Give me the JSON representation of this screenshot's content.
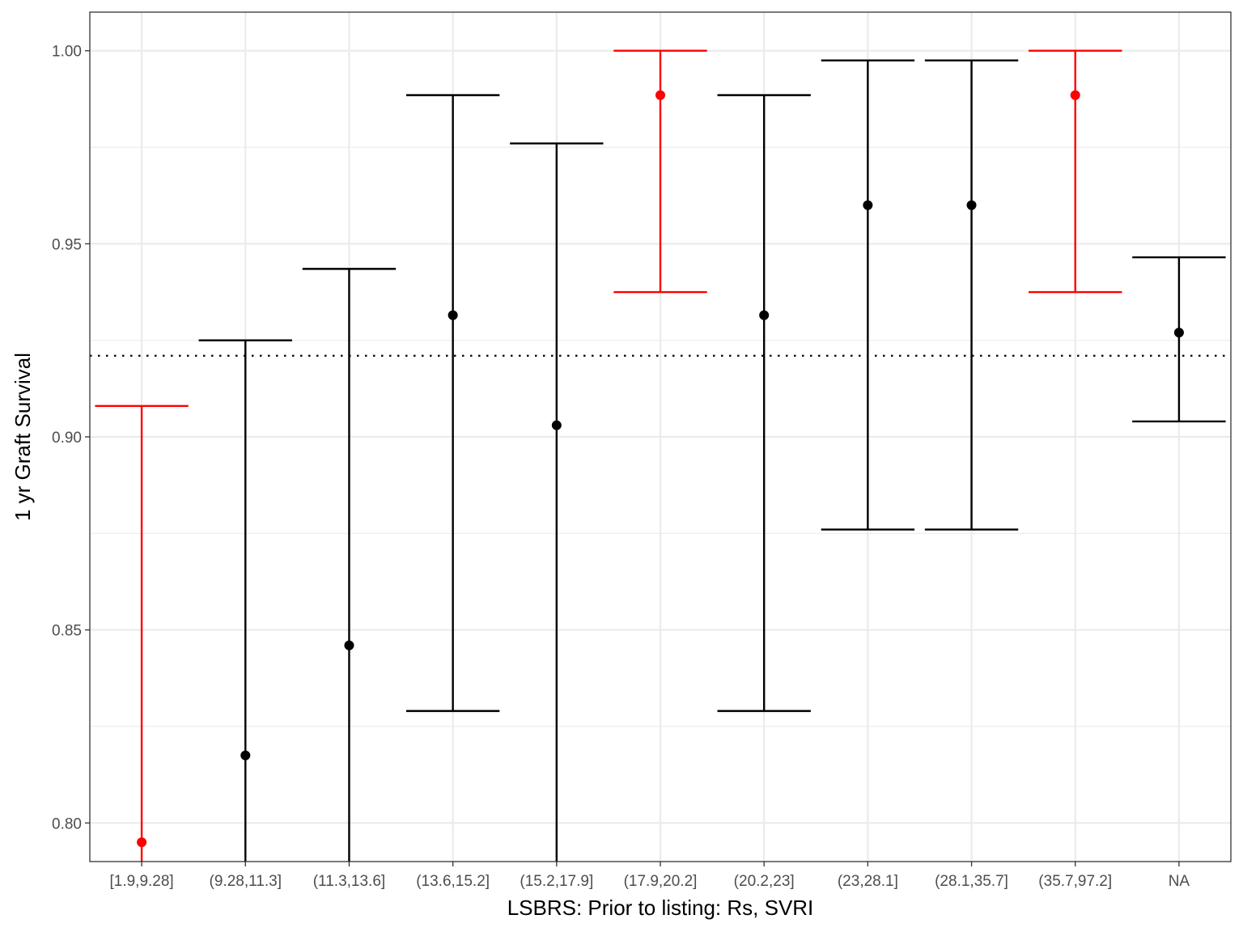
{
  "chart_data": {
    "type": "errorbar",
    "xlabel": "LSBRS: Prior to listing: Rs, SVRI",
    "ylabel": "1 yr Graft Survival",
    "ylim": [
      0.79,
      1.01
    ],
    "yticks": [
      0.8,
      0.85,
      0.9,
      0.95,
      1.0
    ],
    "ytick_labels": [
      "0.80",
      "0.85",
      "0.90",
      "0.95",
      "1.00"
    ],
    "reference_line": 0.921,
    "categories": [
      "[1.9,9.28]",
      "(9.28,11.3]",
      "(11.3,13.6]",
      "(13.6,15.2]",
      "(15.2,17.9]",
      "(17.9,20.2]",
      "(20.2,23]",
      "(23,28.1]",
      "(28.1,35.7]",
      "(35.7,97.2]",
      "NA"
    ],
    "estimate": [
      0.795,
      0.8175,
      0.846,
      0.9315,
      0.903,
      0.9885,
      0.9315,
      0.96,
      0.96,
      0.9885,
      0.927
    ],
    "lower": [
      0.79,
      0.79,
      0.79,
      0.829,
      0.79,
      0.9375,
      0.829,
      0.876,
      0.876,
      0.9375,
      0.904
    ],
    "upper": [
      0.908,
      0.925,
      0.9435,
      0.9885,
      0.976,
      1.0,
      0.9885,
      0.9975,
      0.9975,
      1.0,
      0.9465
    ],
    "highlighted": [
      true,
      false,
      false,
      false,
      false,
      true,
      false,
      false,
      false,
      true,
      false
    ],
    "grid": true,
    "colors": {
      "highlight": "#ff0000",
      "normal": "#000000",
      "grid": "#ebebeb",
      "panel_border": "#333333"
    }
  }
}
